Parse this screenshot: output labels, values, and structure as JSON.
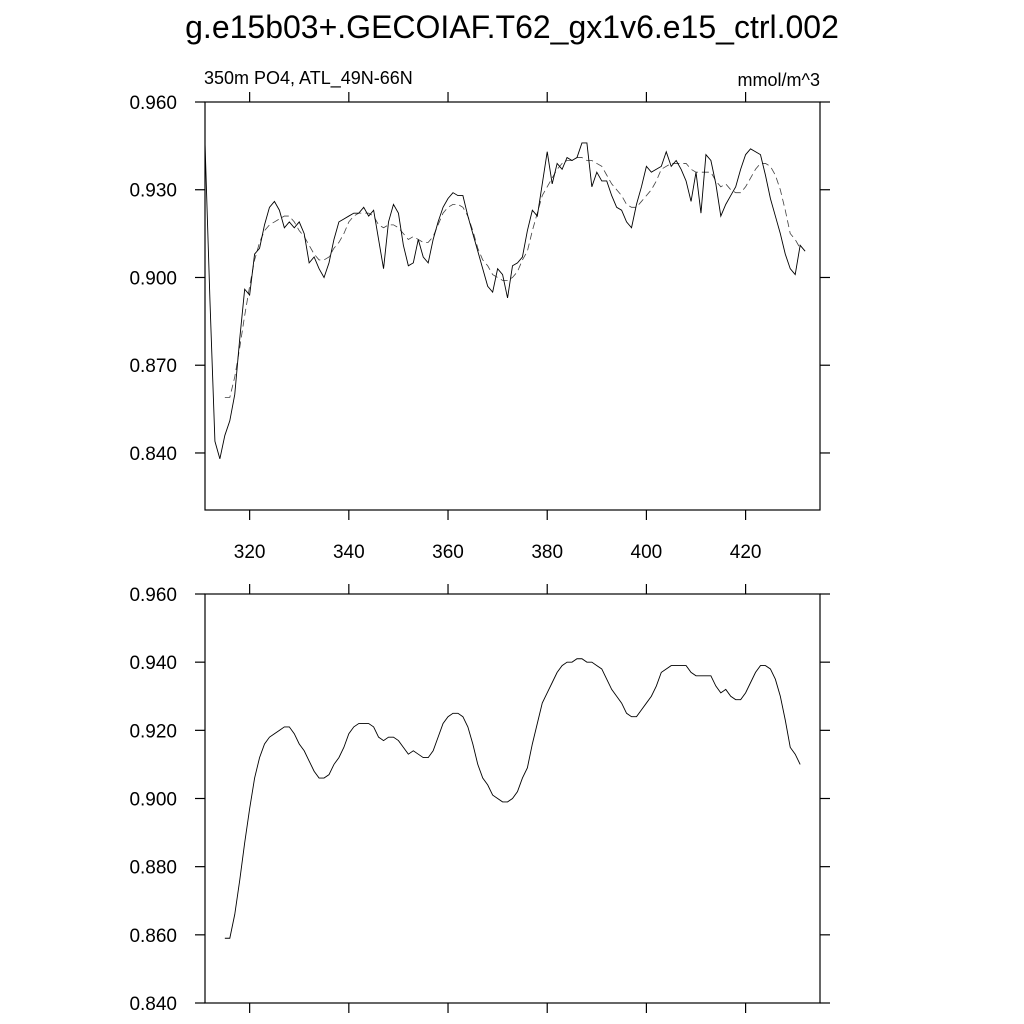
{
  "chart_data": [
    {
      "type": "line",
      "title": "g.e15b03+.GECOIAF.T62_gx1v6.e15_ctrl.002",
      "subtitle": "350m PO4, ATL_49N-66N",
      "units": "mmol/m^3",
      "x": [
        311,
        312,
        313,
        314,
        315,
        316,
        317,
        318,
        319,
        320,
        321,
        322,
        323,
        324,
        325,
        326,
        327,
        328,
        329,
        330,
        331,
        332,
        333,
        334,
        335,
        336,
        337,
        338,
        339,
        340,
        341,
        342,
        343,
        344,
        345,
        346,
        347,
        348,
        349,
        350,
        351,
        352,
        353,
        354,
        355,
        356,
        357,
        358,
        359,
        360,
        361,
        362,
        363,
        364,
        365,
        366,
        367,
        368,
        369,
        370,
        371,
        372,
        373,
        374,
        375,
        376,
        377,
        378,
        379,
        380,
        381,
        382,
        383,
        384,
        385,
        386,
        387,
        388,
        389,
        390,
        391,
        392,
        393,
        394,
        395,
        396,
        397,
        398,
        399,
        400,
        401,
        402,
        403,
        404,
        405,
        406,
        407,
        408,
        409,
        410,
        411,
        412,
        413,
        414,
        415,
        416,
        417,
        418,
        419,
        420,
        421,
        422,
        423,
        424,
        425,
        426,
        427,
        428,
        429,
        430,
        431,
        432
      ],
      "series": [
        {
          "color": "#000000",
          "dashed": false,
          "values": [
            0.946,
            0.892,
            0.844,
            0.838,
            0.846,
            0.851,
            0.86,
            0.879,
            0.896,
            0.894,
            0.908,
            0.91,
            0.918,
            0.924,
            0.926,
            0.923,
            0.917,
            0.919,
            0.917,
            0.919,
            0.915,
            0.905,
            0.907,
            0.903,
            0.9,
            0.905,
            0.913,
            0.919,
            0.92,
            0.921,
            0.922,
            0.922,
            0.924,
            0.921,
            0.923,
            0.913,
            0.903,
            0.919,
            0.925,
            0.922,
            0.911,
            0.904,
            0.905,
            0.913,
            0.907,
            0.905,
            0.913,
            0.919,
            0.924,
            0.927,
            0.929,
            0.928,
            0.928,
            0.921,
            0.915,
            0.909,
            0.903,
            0.897,
            0.895,
            0.903,
            0.901,
            0.893,
            0.904,
            0.905,
            0.907,
            0.916,
            0.923,
            0.921,
            0.932,
            0.943,
            0.932,
            0.939,
            0.937,
            0.941,
            0.94,
            0.941,
            0.946,
            0.946,
            0.931,
            0.936,
            0.933,
            0.933,
            0.928,
            0.924,
            0.923,
            0.919,
            0.917,
            0.925,
            0.931,
            0.938,
            0.936,
            0.937,
            0.938,
            0.943,
            0.938,
            0.94,
            0.937,
            0.933,
            0.926,
            0.936,
            0.922,
            0.942,
            0.94,
            0.932,
            0.921,
            0.925,
            0.928,
            0.931,
            0.937,
            0.942,
            0.944,
            0.943,
            0.942,
            0.935,
            0.927,
            0.921,
            0.915,
            0.908,
            0.903,
            0.901,
            0.911,
            0.909
          ]
        },
        {
          "color": "#000000",
          "dashed": true,
          "values": [
            null,
            null,
            null,
            null,
            0.859,
            0.859,
            0.866,
            0.876,
            0.887,
            0.897,
            0.906,
            0.912,
            0.916,
            0.918,
            0.919,
            0.92,
            0.921,
            0.921,
            0.919,
            0.916,
            0.914,
            0.911,
            0.908,
            0.906,
            0.906,
            0.907,
            0.91,
            0.912,
            0.915,
            0.919,
            0.921,
            0.922,
            0.922,
            0.922,
            0.921,
            0.918,
            0.917,
            0.918,
            0.918,
            0.917,
            0.915,
            0.913,
            0.914,
            0.913,
            0.912,
            0.912,
            0.914,
            0.918,
            0.922,
            0.924,
            0.925,
            0.925,
            0.924,
            0.921,
            0.916,
            0.91,
            0.906,
            0.904,
            0.901,
            0.9,
            0.899,
            0.899,
            0.9,
            0.902,
            0.906,
            0.909,
            0.916,
            0.922,
            0.928,
            0.931,
            0.934,
            0.937,
            0.939,
            0.94,
            0.94,
            0.941,
            0.941,
            0.94,
            0.94,
            0.939,
            0.938,
            0.935,
            0.932,
            0.93,
            0.928,
            0.925,
            0.924,
            0.924,
            0.926,
            0.928,
            0.93,
            0.933,
            0.937,
            0.938,
            0.939,
            0.939,
            0.939,
            0.939,
            0.937,
            0.936,
            0.936,
            0.936,
            0.936,
            0.933,
            0.931,
            0.932,
            0.93,
            0.929,
            0.929,
            0.931,
            0.934,
            0.937,
            0.939,
            0.939,
            0.938,
            0.935,
            0.93,
            0.923,
            0.915,
            0.913,
            0.91,
            null
          ]
        }
      ],
      "xlim": [
        311,
        435
      ],
      "xticks": [
        320,
        340,
        360,
        380,
        400,
        420
      ],
      "ylim": [
        0.8205,
        0.96
      ],
      "yticks": [
        {
          "value": 0.84,
          "label": "0.840"
        },
        {
          "value": 0.87,
          "label": "0.870"
        },
        {
          "value": 0.9,
          "label": "0.900"
        },
        {
          "value": 0.93,
          "label": "0.930"
        },
        {
          "value": 0.96,
          "label": "0.960"
        }
      ]
    },
    {
      "type": "line",
      "x": [
        311,
        312,
        313,
        314,
        315,
        316,
        317,
        318,
        319,
        320,
        321,
        322,
        323,
        324,
        325,
        326,
        327,
        328,
        329,
        330,
        331,
        332,
        333,
        334,
        335,
        336,
        337,
        338,
        339,
        340,
        341,
        342,
        343,
        344,
        345,
        346,
        347,
        348,
        349,
        350,
        351,
        352,
        353,
        354,
        355,
        356,
        357,
        358,
        359,
        360,
        361,
        362,
        363,
        364,
        365,
        366,
        367,
        368,
        369,
        370,
        371,
        372,
        373,
        374,
        375,
        376,
        377,
        378,
        379,
        380,
        381,
        382,
        383,
        384,
        385,
        386,
        387,
        388,
        389,
        390,
        391,
        392,
        393,
        394,
        395,
        396,
        397,
        398,
        399,
        400,
        401,
        402,
        403,
        404,
        405,
        406,
        407,
        408,
        409,
        410,
        411,
        412,
        413,
        414,
        415,
        416,
        417,
        418,
        419,
        420,
        421,
        422,
        423,
        424,
        425,
        426,
        427,
        428,
        429,
        430,
        431,
        432
      ],
      "series": [
        {
          "color": "#000000",
          "dashed": false,
          "values": [
            null,
            null,
            null,
            null,
            0.859,
            0.859,
            0.866,
            0.876,
            0.887,
            0.897,
            0.906,
            0.912,
            0.916,
            0.918,
            0.919,
            0.92,
            0.921,
            0.921,
            0.919,
            0.916,
            0.914,
            0.911,
            0.908,
            0.906,
            0.906,
            0.907,
            0.91,
            0.912,
            0.915,
            0.919,
            0.921,
            0.922,
            0.922,
            0.922,
            0.921,
            0.918,
            0.917,
            0.918,
            0.918,
            0.917,
            0.915,
            0.913,
            0.914,
            0.913,
            0.912,
            0.912,
            0.914,
            0.918,
            0.922,
            0.924,
            0.925,
            0.925,
            0.924,
            0.921,
            0.916,
            0.91,
            0.906,
            0.904,
            0.901,
            0.9,
            0.899,
            0.899,
            0.9,
            0.902,
            0.906,
            0.909,
            0.916,
            0.922,
            0.928,
            0.931,
            0.934,
            0.937,
            0.939,
            0.94,
            0.94,
            0.941,
            0.941,
            0.94,
            0.94,
            0.939,
            0.938,
            0.935,
            0.932,
            0.93,
            0.928,
            0.925,
            0.924,
            0.924,
            0.926,
            0.928,
            0.93,
            0.933,
            0.937,
            0.938,
            0.939,
            0.939,
            0.939,
            0.939,
            0.937,
            0.936,
            0.936,
            0.936,
            0.936,
            0.933,
            0.931,
            0.932,
            0.93,
            0.929,
            0.929,
            0.931,
            0.934,
            0.937,
            0.939,
            0.939,
            0.938,
            0.935,
            0.93,
            0.923,
            0.915,
            0.913,
            0.91,
            null
          ]
        }
      ],
      "xlim": [
        311,
        435
      ],
      "xticks": [
        320,
        340,
        360,
        380,
        400,
        420
      ],
      "ylim": [
        0.84,
        0.96
      ],
      "yticks": [
        {
          "value": 0.84,
          "label": "0.840"
        },
        {
          "value": 0.86,
          "label": "0.860"
        },
        {
          "value": 0.88,
          "label": "0.880"
        },
        {
          "value": 0.9,
          "label": "0.900"
        },
        {
          "value": 0.92,
          "label": "0.920"
        },
        {
          "value": 0.94,
          "label": "0.940"
        },
        {
          "value": 0.96,
          "label": "0.960"
        }
      ]
    }
  ]
}
